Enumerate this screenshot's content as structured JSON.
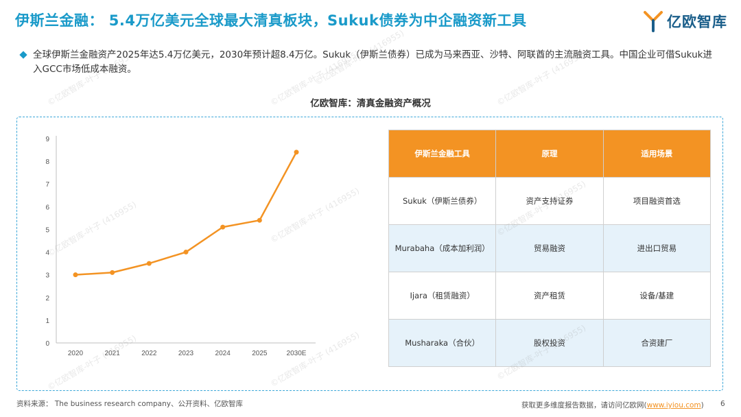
{
  "header": {
    "title": "伊斯兰金融： 5.4万亿美元全球最大清真板块，Sukuk债券为中企融资新工具",
    "logo_text": "亿欧智库"
  },
  "bullet": {
    "text": "全球伊斯兰金融资产2025年达5.4万亿美元，2030年预计超8.4万亿。Sukuk（伊斯兰债券）已成为马来西亚、沙特、阿联酋的主流融资工具。中国企业可借Sukuk进入GCC市场低成本融资。"
  },
  "chart_heading": "亿欧智库：清真金融资产概况",
  "chart_data": {
    "type": "line",
    "x": [
      "2020",
      "2021",
      "2022",
      "2023",
      "2024",
      "2025",
      "2030E"
    ],
    "values": [
      3.0,
      3.1,
      3.5,
      4.0,
      5.1,
      5.4,
      8.4
    ],
    "yticks": [
      "0",
      "1",
      "2",
      "3",
      "4",
      "5",
      "6",
      "7",
      "8",
      "9"
    ],
    "ylim": [
      0,
      9
    ],
    "xlabel": "",
    "ylabel": "",
    "grid": false,
    "color": "#f39323"
  },
  "table": {
    "headers": [
      "伊斯兰金融工具",
      "原理",
      "适用场景"
    ],
    "rows": [
      [
        "Sukuk（伊斯兰债券）",
        "资产支持证券",
        "项目融资首选"
      ],
      [
        "Murabaha（成本加利润）",
        "贸易融资",
        "进出口贸易"
      ],
      [
        "Ijara（租赁融资）",
        "资产租赁",
        "设备/基建"
      ],
      [
        "Musharaka（合伙）",
        "股权投资",
        "合资建厂"
      ]
    ],
    "header_color": "#f39323",
    "alt_row_color": "#e6f2fa"
  },
  "footer": {
    "source": "资料来源： The business research company、公开资料、亿欧智库",
    "right_prefix": "获取更多维度报告数据，请访问亿欧网(",
    "url": "www.iyiou.com",
    "right_suffix": ")",
    "page": "6"
  },
  "watermark": "©亿欧智库-叶子 (416955)",
  "colors": {
    "title": "#1a9ac9",
    "accent": "#f39323",
    "border": "#3aa6d8"
  }
}
